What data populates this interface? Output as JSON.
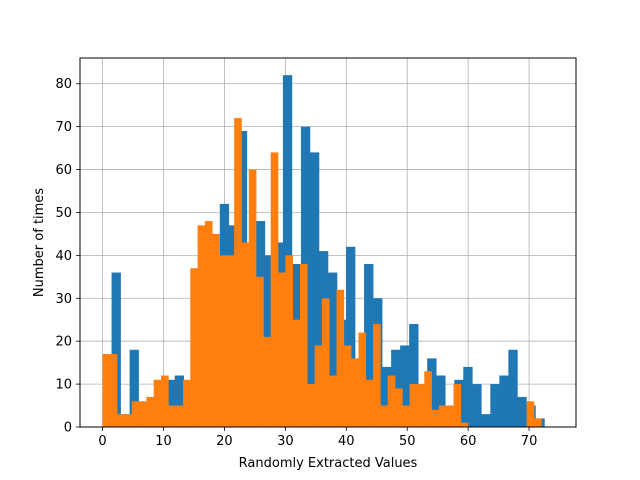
{
  "chart_data": {
    "type": "bar",
    "subtype": "overlaid-histogram",
    "title": "",
    "xlabel": "Randomly Extracted Values",
    "ylabel": "Number of times",
    "xlim": [
      -3.7,
      77.7
    ],
    "ylim": [
      0,
      86
    ],
    "x_ticks": [
      0,
      10,
      20,
      30,
      40,
      50,
      60,
      70
    ],
    "y_ticks": [
      0,
      10,
      20,
      30,
      40,
      50,
      60,
      70,
      80
    ],
    "grid": true,
    "legend": "none",
    "colors": {
      "series_a": "#1f77b4",
      "series_b": "#ff7f0e",
      "grid": "#b0b0b0"
    },
    "series": [
      {
        "bin_start": 0.0,
        "bin_width": 1.48,
        "values": [
          17,
          36,
          3,
          18,
          5,
          6,
          7,
          11,
          12,
          7,
          5,
          16,
          19,
          52,
          47,
          69,
          35,
          48,
          40,
          43,
          82,
          38,
          70,
          64,
          41,
          36,
          25,
          42,
          10,
          38,
          30,
          14,
          18,
          19,
          24,
          10,
          16,
          12,
          5,
          11,
          14,
          10,
          3,
          10,
          12,
          18,
          7,
          5,
          2,
          0,
          0,
          0,
          0,
          0,
          0,
          0,
          0,
          0,
          0,
          0
        ]
      },
      {
        "bin_start": 0.0,
        "bin_width": 1.2,
        "values": [
          17,
          17,
          3,
          3,
          6,
          6,
          7,
          11,
          12,
          5,
          5,
          11,
          37,
          47,
          48,
          45,
          40,
          40,
          72,
          43,
          60,
          35,
          21,
          64,
          36,
          40,
          25,
          38,
          10,
          19,
          30,
          12,
          32,
          19,
          16,
          22,
          11,
          24,
          5,
          12,
          9,
          5,
          10,
          10,
          13,
          4,
          5,
          5,
          10,
          1,
          0,
          0,
          0,
          0,
          0,
          0,
          0,
          0,
          6,
          2
        ]
      }
    ]
  }
}
